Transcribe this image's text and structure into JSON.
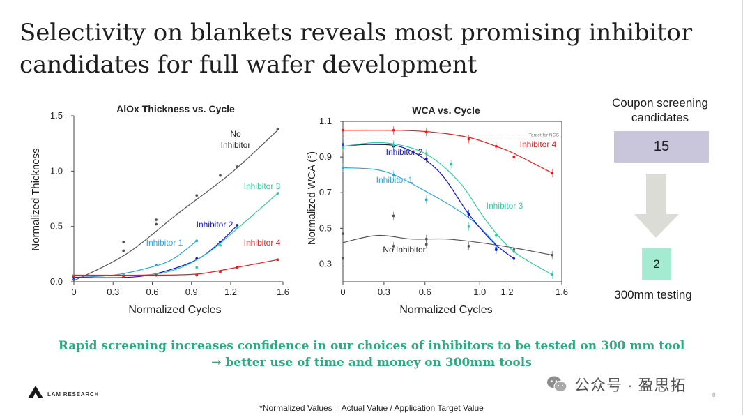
{
  "title": "Selectivity on blankets reveals most promising inhibitor candidates for full wafer development",
  "colors": {
    "no_inhibitor": "#555555",
    "inhibitor_1": "#2aa7e0",
    "inhibitor_2": "#1515c8",
    "inhibitor_3": "#2fcba0",
    "inhibitor_4": "#e41d1d",
    "message": "#2fa97f",
    "box_candidates": "#c9c6dc",
    "box_testing": "#a5ebd2"
  },
  "chart_data": [
    {
      "type": "line",
      "title": "AlOx Thickness vs. Cycle",
      "xlabel": "Normalized Cycles",
      "ylabel": "Normalized Thickness",
      "xlim": [
        0,
        1.6
      ],
      "ylim": [
        0,
        1.5
      ],
      "xticks": [
        "0",
        "0.3",
        "0.6",
        "0.9",
        "1.2",
        "1.6"
      ],
      "yticks": [
        "0.0",
        "0.5",
        "1.0",
        "1.5"
      ],
      "grid": false,
      "legend": "inline labels",
      "series": [
        {
          "name": "No Inhibitor",
          "label_lines": [
            "No",
            "Inhibitor"
          ],
          "color_key": "no_inhibitor",
          "x": [
            0,
            0.38,
            0.38,
            0.63,
            0.63,
            0.94,
            1.12,
            1.25,
            1.56
          ],
          "y": [
            0.02,
            0.28,
            0.36,
            0.52,
            0.56,
            0.78,
            0.96,
            1.04,
            1.38
          ],
          "curve": [
            [
              0,
              0.01
            ],
            [
              0.4,
              0.25
            ],
            [
              0.8,
              0.62
            ],
            [
              1.2,
              0.98
            ],
            [
              1.56,
              1.37
            ]
          ]
        },
        {
          "name": "Inhibitor 1",
          "color_key": "inhibitor_1",
          "x": [
            0,
            0.38,
            0.63,
            0.94
          ],
          "y": [
            0.05,
            0.07,
            0.15,
            0.37
          ],
          "curve": [
            [
              0,
              0.04
            ],
            [
              0.3,
              0.06
            ],
            [
              0.55,
              0.12
            ],
            [
              0.75,
              0.2
            ],
            [
              0.94,
              0.37
            ]
          ]
        },
        {
          "name": "Inhibitor 2",
          "color_key": "inhibitor_2",
          "x": [
            0,
            0.38,
            0.63,
            0.94,
            1.12,
            1.25
          ],
          "y": [
            0.04,
            0.05,
            0.06,
            0.21,
            0.36,
            0.51
          ],
          "curve": [
            [
              0,
              0.04
            ],
            [
              0.4,
              0.04
            ],
            [
              0.65,
              0.08
            ],
            [
              0.94,
              0.2
            ],
            [
              1.12,
              0.36
            ],
            [
              1.25,
              0.51
            ]
          ]
        },
        {
          "name": "Inhibitor 3",
          "color_key": "inhibitor_3",
          "x": [
            0,
            0.38,
            0.63,
            0.94,
            1.12,
            1.25,
            1.56
          ],
          "y": [
            0.06,
            0.06,
            0.07,
            0.13,
            0.33,
            0.49,
            0.8
          ],
          "curve": [
            [
              0,
              0.06
            ],
            [
              0.5,
              0.06
            ],
            [
              0.75,
              0.1
            ],
            [
              1.0,
              0.24
            ],
            [
              1.25,
              0.48
            ],
            [
              1.56,
              0.8
            ]
          ]
        },
        {
          "name": "Inhibitor 4",
          "color_key": "inhibitor_4",
          "x": [
            0,
            0.38,
            0.63,
            0.94,
            1.12,
            1.25,
            1.56
          ],
          "y": [
            0.05,
            0.05,
            0.06,
            0.06,
            0.09,
            0.13,
            0.2
          ],
          "curve": [
            [
              0,
              0.06
            ],
            [
              0.6,
              0.06
            ],
            [
              0.94,
              0.07
            ],
            [
              1.2,
              0.12
            ],
            [
              1.56,
              0.2
            ]
          ]
        }
      ]
    },
    {
      "type": "line",
      "title": "WCA vs. Cycle",
      "xlabel": "Normalized Cycles",
      "ylabel": "Normalized WCA (°)",
      "xlim": [
        0,
        1.6
      ],
      "ylim": [
        0.2,
        1.1
      ],
      "xticks": [
        "0",
        "0.3",
        "0.6",
        "1.0",
        "1.2",
        "1.6"
      ],
      "yticks": [
        "0.3",
        "0.5",
        "0.7",
        "0.9",
        "1.1"
      ],
      "grid": false,
      "legend": "inline labels",
      "reference_line": {
        "label": "Target for NGS",
        "y": 1.0
      },
      "series": [
        {
          "name": "No Inhibitor",
          "color_key": "no_inhibitor",
          "x": [
            0,
            0,
            0.37,
            0.37,
            0.61,
            0.61,
            0.92,
            1.12,
            1.25,
            1.53
          ],
          "y": [
            0.47,
            0.33,
            0.4,
            0.57,
            0.41,
            0.44,
            0.4,
            0.38,
            0.38,
            0.35
          ],
          "curve": [
            [
              0,
              0.42
            ],
            [
              0.25,
              0.46
            ],
            [
              0.5,
              0.44
            ],
            [
              0.75,
              0.44
            ],
            [
              1.0,
              0.42
            ],
            [
              1.25,
              0.39
            ],
            [
              1.53,
              0.35
            ]
          ]
        },
        {
          "name": "Inhibitor 1",
          "color_key": "inhibitor_1",
          "x": [
            0,
            0.37,
            0.61,
            0.92,
            1.12
          ],
          "y": [
            0.84,
            0.8,
            0.66,
            0.58,
            0.39
          ],
          "curve": [
            [
              0,
              0.84
            ],
            [
              0.3,
              0.82
            ],
            [
              0.6,
              0.71
            ],
            [
              0.92,
              0.56
            ],
            [
              1.12,
              0.41
            ]
          ]
        },
        {
          "name": "Inhibitor 2",
          "color_key": "inhibitor_2",
          "x": [
            0,
            0.37,
            0.61,
            0.92,
            1.12,
            1.25
          ],
          "y": [
            0.97,
            0.96,
            0.89,
            0.58,
            0.38,
            0.33
          ],
          "curve": [
            [
              0,
              0.96
            ],
            [
              0.2,
              0.97
            ],
            [
              0.45,
              0.95
            ],
            [
              0.7,
              0.82
            ],
            [
              0.92,
              0.58
            ],
            [
              1.1,
              0.42
            ],
            [
              1.25,
              0.33
            ]
          ]
        },
        {
          "name": "Inhibitor 3",
          "color_key": "inhibitor_3",
          "x": [
            0,
            0.37,
            0.61,
            0.79,
            0.92,
            1.12,
            1.25,
            1.53
          ],
          "y": [
            0.95,
            0.97,
            0.92,
            0.86,
            0.51,
            0.46,
            0.37,
            0.24
          ],
          "curve": [
            [
              0,
              0.96
            ],
            [
              0.3,
              0.98
            ],
            [
              0.6,
              0.92
            ],
            [
              0.85,
              0.76
            ],
            [
              1.05,
              0.54
            ],
            [
              1.25,
              0.37
            ],
            [
              1.53,
              0.24
            ]
          ]
        },
        {
          "name": "Inhibitor 4",
          "color_key": "inhibitor_4",
          "x": [
            0,
            0.37,
            0.61,
            0.92,
            1.12,
            1.25,
            1.53
          ],
          "y": [
            1.05,
            1.05,
            1.04,
            1.0,
            0.96,
            0.9,
            0.81
          ],
          "curve": [
            [
              0,
              1.05
            ],
            [
              0.4,
              1.05
            ],
            [
              0.65,
              1.04
            ],
            [
              0.92,
              1.01
            ],
            [
              1.12,
              0.96
            ],
            [
              1.25,
              0.92
            ],
            [
              1.53,
              0.81
            ]
          ]
        }
      ]
    }
  ],
  "flow": {
    "top_label": "Coupon screening candidates",
    "count_candidates": "15",
    "count_testing": "2",
    "bottom_label": "300mm testing"
  },
  "message": {
    "line1": "Rapid screening increases confidence in our choices of inhibitors to be tested on 300 mm tool",
    "line2": "→ better use of time and money on 300mm tools"
  },
  "logo": {
    "text": "LAM RESEARCH"
  },
  "watermark": {
    "text": "公众号 · 盈思拓"
  },
  "page_number": "8",
  "footnote": "*Normalized Values = Actual Value / Application Target Value"
}
